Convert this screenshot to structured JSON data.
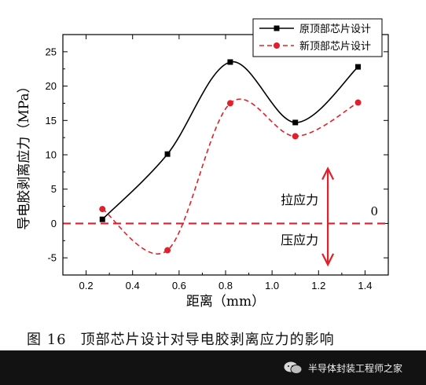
{
  "chart_data": {
    "type": "line",
    "xlabel": "距离（mm）",
    "ylabel": "导电胶剥离应力（MPa）",
    "xlim": [
      0.1,
      1.5
    ],
    "ylim": [
      -7.5,
      27.5
    ],
    "xticks": [
      0.2,
      0.4,
      0.6,
      0.8,
      1.0,
      1.2,
      1.4
    ],
    "yticks": [
      -5,
      0,
      5,
      10,
      15,
      20,
      25
    ],
    "grid": false,
    "legend_position": "top-right",
    "series": [
      {
        "name": "原顶部芯片设计",
        "color": "#000000",
        "line_style": "solid",
        "marker": "square",
        "x": [
          0.27,
          0.55,
          0.82,
          1.1,
          1.37
        ],
        "y": [
          0.6,
          10.1,
          23.5,
          14.7,
          22.8
        ]
      },
      {
        "name": "新顶部芯片设计",
        "color": "#e0202a",
        "line_style": "dashed",
        "marker": "circle",
        "x": [
          0.27,
          0.55,
          0.82,
          1.1,
          1.37
        ],
        "y": [
          2.1,
          -3.9,
          17.5,
          12.7,
          17.6
        ]
      }
    ],
    "annotations": {
      "tension_label": "拉应力",
      "compression_label": "压应力",
      "zero_label": "0",
      "zero_line_y": 0,
      "arrow_x": 1.24,
      "arrow_y_range": [
        -6,
        8
      ]
    }
  },
  "caption": {
    "figure_number": "图 16",
    "text": "顶部芯片设计对导电胶剥离应力的影响"
  },
  "footer": {
    "text": "半导体封装工程师之家",
    "icon": "wechat-icon"
  }
}
